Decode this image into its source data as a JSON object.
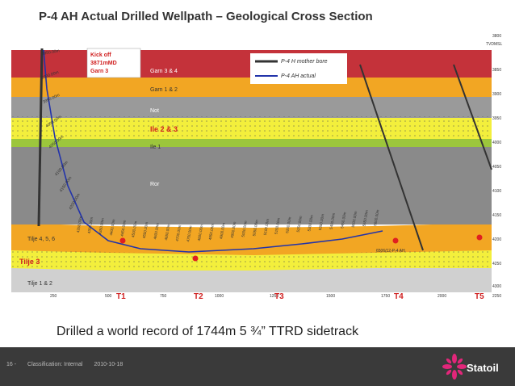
{
  "title": "P-4 AH Actual Drilled Wellpath – Geological Cross Section",
  "caption": "Drilled a world record of 1744m 5 ¾” TTRD sidetrack",
  "footer": {
    "page": "16 -",
    "classification": "Classification: Internal",
    "date": "2010-10-18"
  },
  "logo": {
    "name": "Statoil"
  },
  "diagram": {
    "kickoff": {
      "line1": "Kick off",
      "line2": "3871mMD",
      "line3": "Garn 3"
    },
    "legend": [
      {
        "label": "P-4 H mother bore",
        "color": "#333333"
      },
      {
        "label": "P-4 AH actual",
        "color": "#2233aa"
      }
    ],
    "depth_unit": "TVDMSL",
    "formations": [
      {
        "label": "Garn 3 & 4",
        "color": "#c4323a"
      },
      {
        "label": "Garn 1 & 2",
        "color": "#f2a623"
      },
      {
        "label": "Not",
        "color": "#9a9a9a"
      },
      {
        "label": "Ile 2 & 3",
        "color": "#f3ef3c"
      },
      {
        "label": "Ile 1",
        "color": "#9cc63c"
      },
      {
        "label": "Ror",
        "color": "#8a8a8a"
      },
      {
        "label": "Tilje 4, 5, 6",
        "color": "#f2a623"
      },
      {
        "label": "Tilje 3",
        "color": "#f3ef3c"
      },
      {
        "label": "Tilje 1 & 2",
        "color": "#d0d0d0"
      }
    ],
    "depth_ticks": [
      "3800",
      "3850",
      "3900",
      "3950",
      "4000",
      "4050",
      "4100",
      "4150",
      "4200",
      "4250",
      "4300"
    ],
    "x_ticks": [
      "250",
      "500",
      "750",
      "1000",
      "1250",
      "1500",
      "1750",
      "2000",
      "2250"
    ],
    "targets": [
      "T1",
      "T2",
      "T3",
      "T4",
      "T5"
    ],
    "md_labels_vertical": [
      "3850.00m",
      "3900.00m",
      "3950.00m",
      "4000.00m",
      "4050.00m",
      "4100.00m",
      "4150.00m",
      "4200.00m"
    ],
    "md_labels_horizontal": [
      "4250.00m",
      "4300.00m",
      "4350.00m",
      "4400.00m",
      "4450.00m",
      "4500.00m",
      "4550.00m",
      "4600.00m",
      "4650.00m",
      "4700.00m",
      "4750.00m",
      "4800.00m",
      "4850.00m",
      "4900.00m",
      "4950.00m",
      "5000.00m",
      "5050.00m",
      "5100.00m",
      "5150.00m",
      "5200.00m",
      "5250.00m",
      "5300.00m",
      "5350.00m",
      "5400.00m",
      "5450.00m",
      "5500.00m",
      "5550.00m",
      "5600.00m"
    ],
    "well_end_label": "6506/12-P-4 AH"
  }
}
